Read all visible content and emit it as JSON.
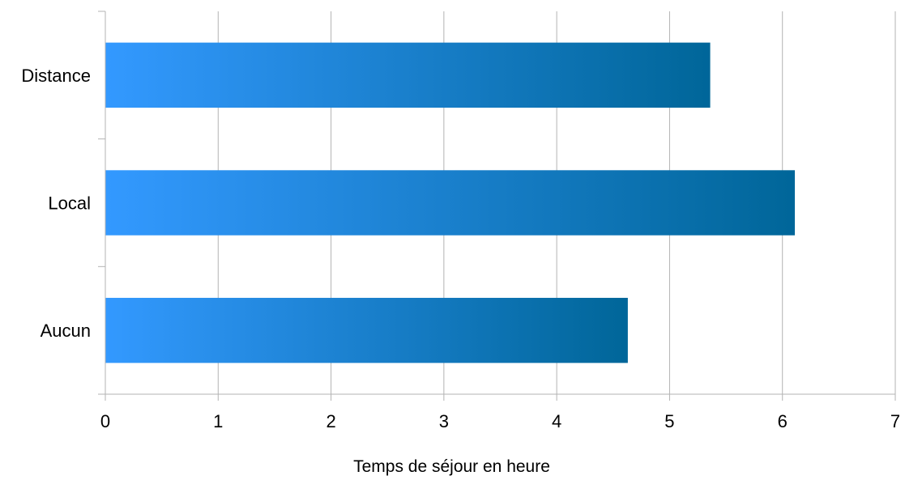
{
  "chart_data": {
    "type": "bar",
    "orientation": "horizontal",
    "categories": [
      "Distance",
      "Local",
      "Aucun"
    ],
    "values": [
      5.36,
      6.11,
      4.63
    ],
    "xlabel": "Temps de séjour en heure",
    "ylabel": "",
    "xlim": [
      0,
      7
    ],
    "xticks": [
      "0",
      "1",
      "2",
      "3",
      "4",
      "5",
      "6",
      "7"
    ],
    "grid": true,
    "legend": "none",
    "colors": {
      "bar_start": "#3399ff",
      "bar_end": "#006699",
      "grid": "#b3b3b3",
      "axis": "#b3b3b3"
    }
  }
}
